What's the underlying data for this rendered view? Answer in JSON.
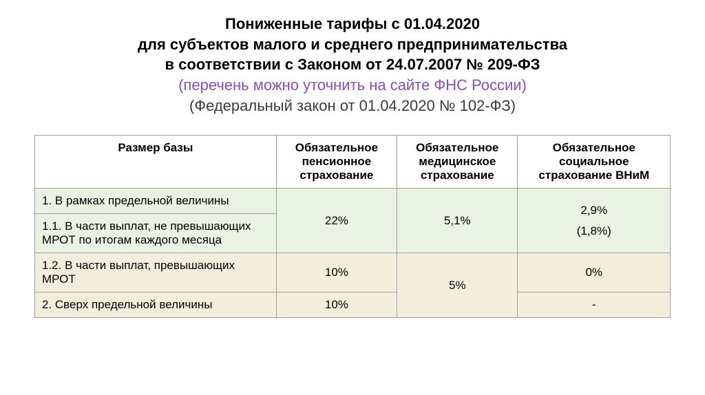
{
  "title": {
    "line1": "Пониженные тарифы с 01.04.2020",
    "line2": "для субъектов малого и среднего предпринимательства",
    "line3": "в соответствии с Законом от 24.07.2007 № 209-ФЗ",
    "line4": "(перечень можно уточнить на сайте ФНС России)",
    "line5": "(Федеральный закон от 01.04.2020 № 102-ФЗ)"
  },
  "colors": {
    "purple": "#8a4fb0",
    "greenRow": "#eaf3e2",
    "tanRow": "#f3eddc",
    "border": "#9e9e9e"
  },
  "table": {
    "headers": {
      "c1": "Размер базы",
      "c2": "Обязательное пенсионное страхование",
      "c3": "Обязательное медицинское страхование",
      "c4": "Обязательное социальное страхование ВНиМ"
    },
    "rows": {
      "r1_label": "1. В рамках предельной величины",
      "r2_label": "1.1. В части выплат, не превышающих МРОТ по итогам каждого месяца",
      "r3_label": "1.2. В части выплат, превышающих МРОТ",
      "r4_label": "2. Сверх предельной величины"
    },
    "values": {
      "pension_r1r2": "22%",
      "pension_r3": "10%",
      "pension_r4": "10%",
      "medical_r1r2": "5,1%",
      "medical_r3r4": "5%",
      "social_r1r2_main": "2,9%",
      "social_r1r2_secondary": "(1,8%)",
      "social_r3": "0%",
      "social_r4": "-"
    }
  }
}
